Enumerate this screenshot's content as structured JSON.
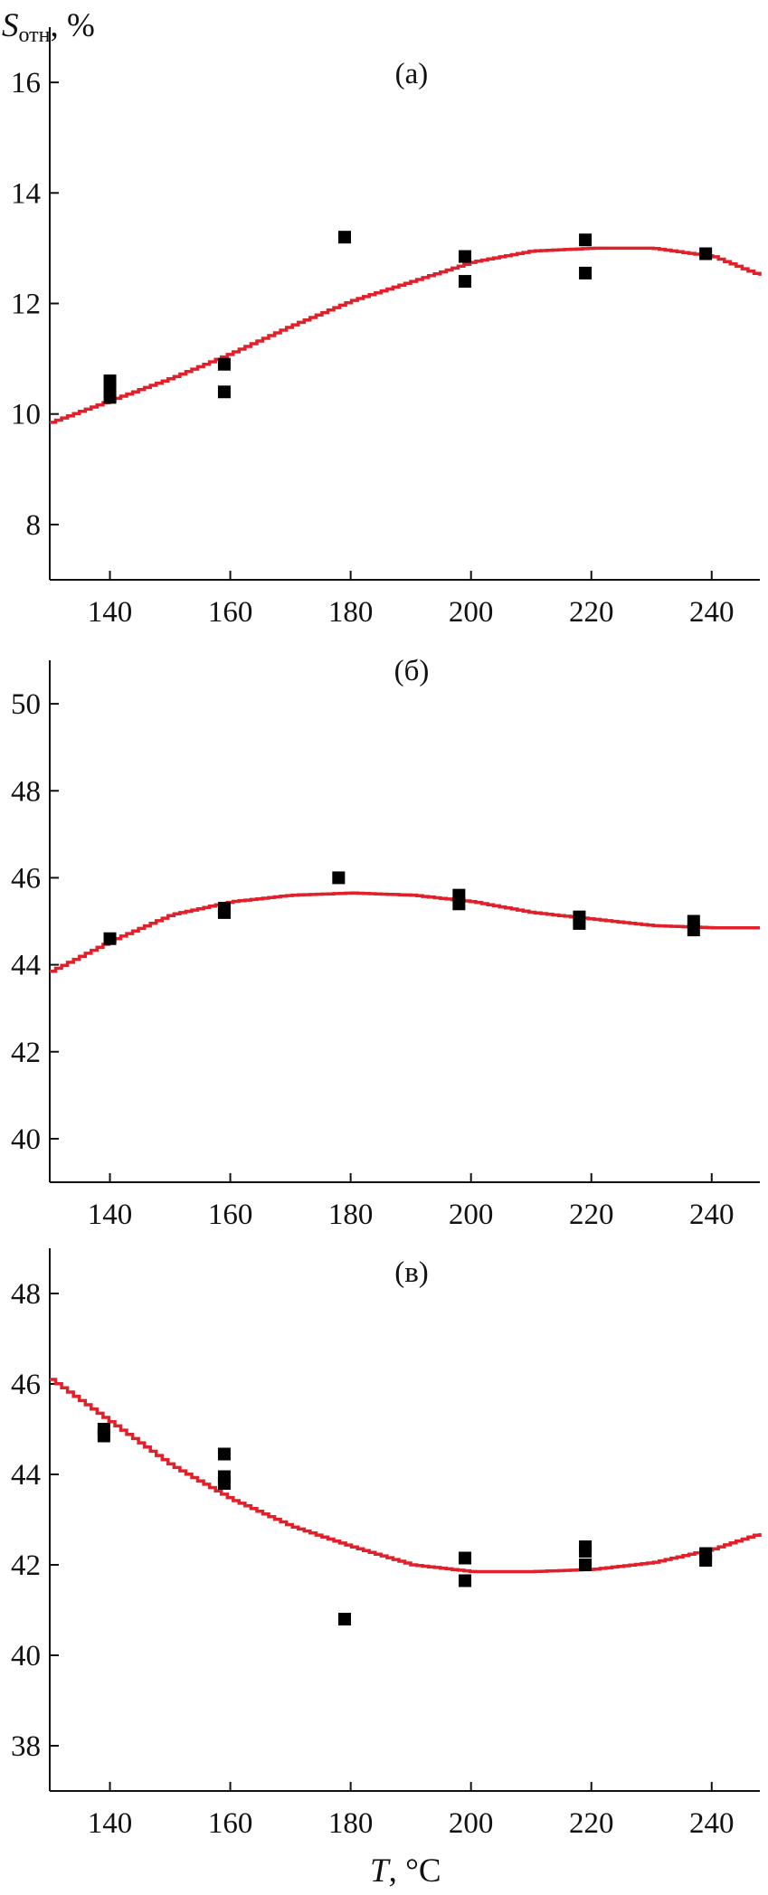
{
  "ylabel": {
    "main": "S",
    "sub": "отн",
    "unit": ", %"
  },
  "xlabel": {
    "main": "T",
    "unit": ", °C"
  },
  "chart_data": [
    {
      "type": "scatter",
      "panel_label": "(а)",
      "xlim": [
        130,
        248
      ],
      "ylim": [
        7,
        17
      ],
      "xticks": [
        140,
        160,
        180,
        200,
        220,
        240
      ],
      "yticks": [
        8,
        10,
        12,
        14,
        16
      ],
      "points": [
        [
          140,
          10.6
        ],
        [
          140,
          10.45
        ],
        [
          140,
          10.3
        ],
        [
          159,
          10.9
        ],
        [
          159,
          10.4
        ],
        [
          179,
          13.2
        ],
        [
          199,
          12.85
        ],
        [
          199,
          12.4
        ],
        [
          219,
          13.15
        ],
        [
          219,
          12.55
        ],
        [
          239,
          12.9
        ]
      ],
      "fit": [
        [
          130,
          9.85
        ],
        [
          140,
          10.25
        ],
        [
          150,
          10.65
        ],
        [
          160,
          11.1
        ],
        [
          170,
          11.6
        ],
        [
          180,
          12.05
        ],
        [
          190,
          12.4
        ],
        [
          200,
          12.75
        ],
        [
          210,
          12.95
        ],
        [
          220,
          13.0
        ],
        [
          230,
          13.0
        ],
        [
          240,
          12.85
        ],
        [
          248,
          12.5
        ]
      ]
    },
    {
      "type": "scatter",
      "panel_label": "(б)",
      "xlim": [
        130,
        248
      ],
      "ylim": [
        39,
        51
      ],
      "xticks": [
        140,
        160,
        180,
        200,
        220,
        240
      ],
      "yticks": [
        40,
        42,
        44,
        46,
        48,
        50
      ],
      "points": [
        [
          140,
          44.6
        ],
        [
          159,
          45.3
        ],
        [
          159,
          45.2
        ],
        [
          178,
          46.0
        ],
        [
          198,
          45.6
        ],
        [
          198,
          45.4
        ],
        [
          218,
          45.1
        ],
        [
          218,
          44.95
        ],
        [
          237,
          45.0
        ],
        [
          237,
          44.8
        ]
      ],
      "fit": [
        [
          130,
          43.85
        ],
        [
          140,
          44.55
        ],
        [
          150,
          45.15
        ],
        [
          160,
          45.45
        ],
        [
          170,
          45.6
        ],
        [
          180,
          45.65
        ],
        [
          190,
          45.6
        ],
        [
          200,
          45.45
        ],
        [
          210,
          45.2
        ],
        [
          220,
          45.05
        ],
        [
          230,
          44.9
        ],
        [
          240,
          44.85
        ],
        [
          247,
          44.85
        ]
      ]
    },
    {
      "type": "scatter",
      "panel_label": "(в)",
      "xlim": [
        130,
        248
      ],
      "ylim": [
        37,
        49
      ],
      "xticks": [
        140,
        160,
        180,
        200,
        220,
        240
      ],
      "yticks": [
        38,
        40,
        42,
        44,
        46,
        48
      ],
      "points": [
        [
          139,
          45.0
        ],
        [
          139,
          44.85
        ],
        [
          159,
          44.45
        ],
        [
          159,
          43.95
        ],
        [
          159,
          43.8
        ],
        [
          179,
          40.8
        ],
        [
          199,
          42.15
        ],
        [
          199,
          41.65
        ],
        [
          219,
          42.4
        ],
        [
          219,
          42.3
        ],
        [
          219,
          42.0
        ],
        [
          239,
          42.25
        ],
        [
          239,
          42.1
        ]
      ],
      "fit": [
        [
          130,
          46.1
        ],
        [
          140,
          45.15
        ],
        [
          150,
          44.2
        ],
        [
          160,
          43.45
        ],
        [
          170,
          42.85
        ],
        [
          180,
          42.4
        ],
        [
          190,
          42.0
        ],
        [
          200,
          41.85
        ],
        [
          210,
          41.85
        ],
        [
          220,
          41.9
        ],
        [
          230,
          42.05
        ],
        [
          240,
          42.35
        ],
        [
          248,
          42.7
        ]
      ]
    }
  ]
}
